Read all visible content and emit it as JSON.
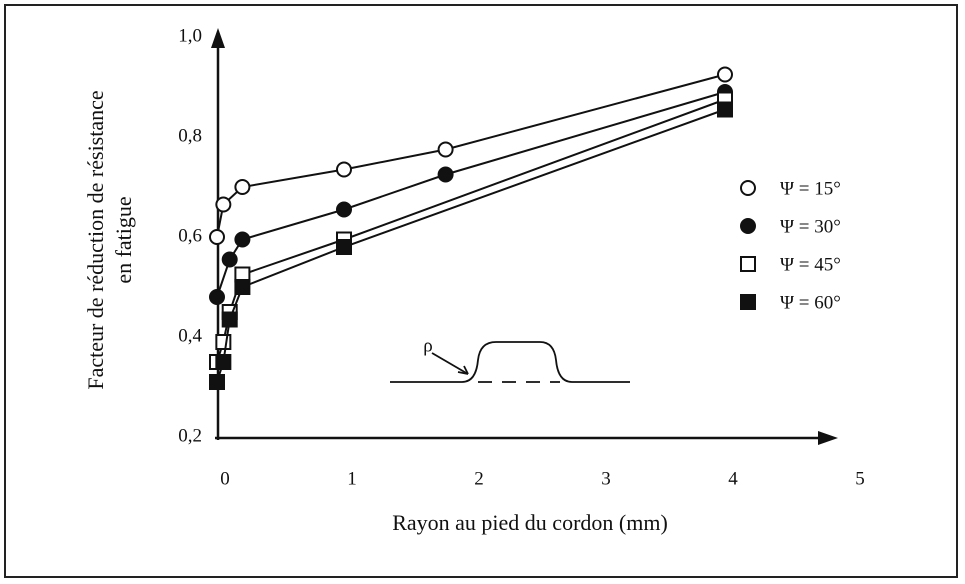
{
  "chart_data": {
    "type": "scatter",
    "xlabel": "Rayon au pied du cordon (mm)",
    "ylabel": [
      "Facteur de réduction de résistance",
      "en fatigue"
    ],
    "annotation": "ρ",
    "xlim": [
      0,
      5
    ],
    "xticks": [
      0,
      1,
      2,
      3,
      4,
      5
    ],
    "ylim": [
      0.2,
      1.0
    ],
    "yticks": [
      {
        "value": 0.2,
        "label": "0,2"
      },
      {
        "value": 0.4,
        "label": "0,4"
      },
      {
        "value": 0.6,
        "label": "0,6"
      },
      {
        "value": 0.8,
        "label": "0,8"
      },
      {
        "value": 1.0,
        "label": "1,0"
      }
    ],
    "series": [
      {
        "name": "Ψ = 15°",
        "color": "#111",
        "marker": "open-circle",
        "x": [
          0,
          0.05,
          0.2,
          1,
          1.8,
          4
        ],
        "values": [
          0.6,
          0.665,
          0.7,
          0.735,
          0.775,
          0.925
        ]
      },
      {
        "name": "Ψ = 30°",
        "color": "#111",
        "marker": "filled-circle",
        "x": [
          0,
          0.1,
          0.2,
          1,
          1.8,
          4
        ],
        "values": [
          0.48,
          0.555,
          0.595,
          0.655,
          0.725,
          0.89
        ]
      },
      {
        "name": "Ψ = 45°",
        "color": "#111",
        "marker": "open-square",
        "x": [
          0,
          0.05,
          0.1,
          0.2,
          1,
          4
        ],
        "values": [
          0.35,
          0.39,
          0.45,
          0.525,
          0.595,
          0.875
        ]
      },
      {
        "name": "Ψ = 60°",
        "color": "#111",
        "marker": "filled-square",
        "x": [
          0,
          0.05,
          0.1,
          0.2,
          1,
          4
        ],
        "values": [
          0.31,
          0.35,
          0.435,
          0.5,
          0.58,
          0.855
        ]
      }
    ]
  }
}
